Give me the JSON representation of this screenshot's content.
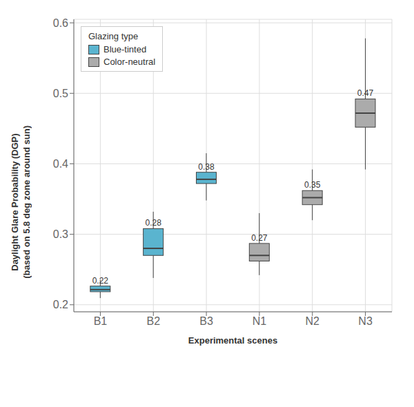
{
  "chart_data": {
    "type": "box",
    "xlabel": "Experimental scenes",
    "ylabel": "Daylight Glare Probability (DGP)\n(based on 5.8 deg zone around sun)",
    "categories": [
      "B1",
      "B2",
      "B3",
      "N1",
      "N2",
      "N3"
    ],
    "boxes": [
      {
        "q1": 0.2185,
        "median": 0.2215,
        "q3": 0.2265,
        "whislo": 0.2095,
        "whishi": 0.2355,
        "value_label": "0.22",
        "series": "Blue-tinted"
      },
      {
        "q1": 0.27,
        "median": 0.28,
        "q3": 0.308,
        "whislo": 0.238,
        "whishi": 0.332,
        "value_label": "0.28",
        "series": "Blue-tinted"
      },
      {
        "q1": 0.372,
        "median": 0.378,
        "q3": 0.388,
        "whislo": 0.348,
        "whishi": 0.415,
        "value_label": "0.38",
        "series": "Blue-tinted"
      },
      {
        "q1": 0.262,
        "median": 0.27,
        "q3": 0.287,
        "whislo": 0.242,
        "whishi": 0.33,
        "value_label": "0.27",
        "series": "Color-neutral"
      },
      {
        "q1": 0.342,
        "median": 0.352,
        "q3": 0.362,
        "whislo": 0.32,
        "whishi": 0.392,
        "value_label": "0.35",
        "series": "Color-neutral"
      },
      {
        "q1": 0.452,
        "median": 0.472,
        "q3": 0.492,
        "whislo": 0.392,
        "whishi": 0.578,
        "value_label": "0.47",
        "series": "Color-neutral"
      }
    ],
    "series": [
      {
        "name": "Blue-tinted",
        "color": "#5AB4CF"
      },
      {
        "name": "Color-neutral",
        "color": "#ABABAB"
      }
    ],
    "color": "#444444",
    "ylim": [
      0.19,
      0.605
    ],
    "yticks": [
      0.2,
      0.3,
      0.4,
      0.5,
      0.6
    ],
    "grid": true,
    "legend": "upper left",
    "legend_title": "Glazing type",
    "data_labels": true
  }
}
